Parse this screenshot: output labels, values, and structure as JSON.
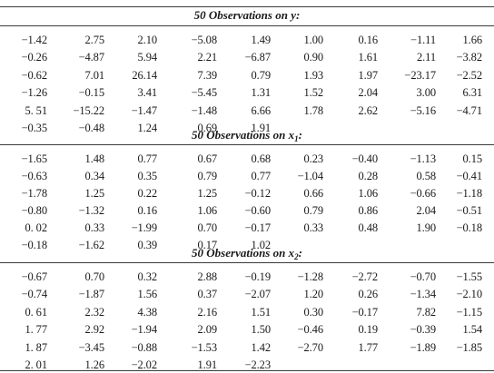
{
  "sections": [
    {
      "title_prefix": "50 Observations on ",
      "title_var": "y",
      "title_sub": "",
      "title_suffix": ":",
      "rows": [
        [
          "−1.42",
          "2.75",
          "2.10",
          "−5.08",
          "1.49",
          "1.00",
          "0.16",
          "−1.11",
          "1.66"
        ],
        [
          "−0.26",
          "−4.87",
          "5.94",
          "2.21",
          "−6.87",
          "0.90",
          "1.61",
          "2.11",
          "−3.82"
        ],
        [
          "−0.62",
          "7.01",
          "26.14",
          "7.39",
          "0.79",
          "1.93",
          "1.97",
          "−23.17",
          "−2.52"
        ],
        [
          "−1.26",
          "−0.15",
          "3.41",
          "−5.45",
          "1.31",
          "1.52",
          "2.04",
          "3.00",
          "6.31"
        ],
        [
          "5. 51",
          "−15.22",
          "−1.47",
          "−1.48",
          "6.66",
          "1.78",
          "2.62",
          "−5.16",
          "−4.71"
        ],
        [
          "−0.35",
          "−0.48",
          "1.24",
          "0.69",
          "1.91",
          "",
          "",
          "",
          ""
        ]
      ]
    },
    {
      "title_prefix": "50 Observations on ",
      "title_var": "x",
      "title_sub": "1",
      "title_suffix": ":",
      "rows": [
        [
          "−1.65",
          "1.48",
          "0.77",
          "0.67",
          "0.68",
          "0.23",
          "−0.40",
          "−1.13",
          "0.15"
        ],
        [
          "−0.63",
          "0.34",
          "0.35",
          "0.79",
          "0.77",
          "−1.04",
          "0.28",
          "0.58",
          "−0.41"
        ],
        [
          "−1.78",
          "1.25",
          "0.22",
          "1.25",
          "−0.12",
          "0.66",
          "1.06",
          "−0.66",
          "−1.18"
        ],
        [
          "−0.80",
          "−1.32",
          "0.16",
          "1.06",
          "−0.60",
          "0.79",
          "0.86",
          "2.04",
          "−0.51"
        ],
        [
          "0. 02",
          "0.33",
          "−1.99",
          "0.70",
          "−0.17",
          "0.33",
          "0.48",
          "1.90",
          "−0.18"
        ],
        [
          "−0.18",
          "−1.62",
          "0.39",
          "0.17",
          "1.02",
          "",
          "",
          "",
          ""
        ]
      ]
    },
    {
      "title_prefix": "50 Observations on ",
      "title_var": "x",
      "title_sub": "2",
      "title_suffix": ":",
      "rows": [
        [
          "−0.67",
          "0.70",
          "0.32",
          "2.88",
          "−0.19",
          "−1.28",
          "−2.72",
          "−0.70",
          "−1.55"
        ],
        [
          "−0.74",
          "−1.87",
          "1.56",
          "0.37",
          "−2.07",
          "1.20",
          "0.26",
          "−1.34",
          "−2.10"
        ],
        [
          "0. 61",
          "2.32",
          "4.38",
          "2.16",
          "1.51",
          "0.30",
          "−0.17",
          "7.82",
          "−1.15"
        ],
        [
          "1. 77",
          "2.92",
          "−1.94",
          "2.09",
          "1.50",
          "−0.46",
          "0.19",
          "−0.39",
          "1.54"
        ],
        [
          "1. 87",
          "−3.45",
          "−0.88",
          "−1.53",
          "1.42",
          "−2.70",
          "1.77",
          "−1.89",
          "−1.85"
        ],
        [
          "2. 01",
          "1.26",
          "−2.02",
          "1.91",
          "−2.23",
          "",
          "",
          "",
          ""
        ]
      ]
    }
  ]
}
